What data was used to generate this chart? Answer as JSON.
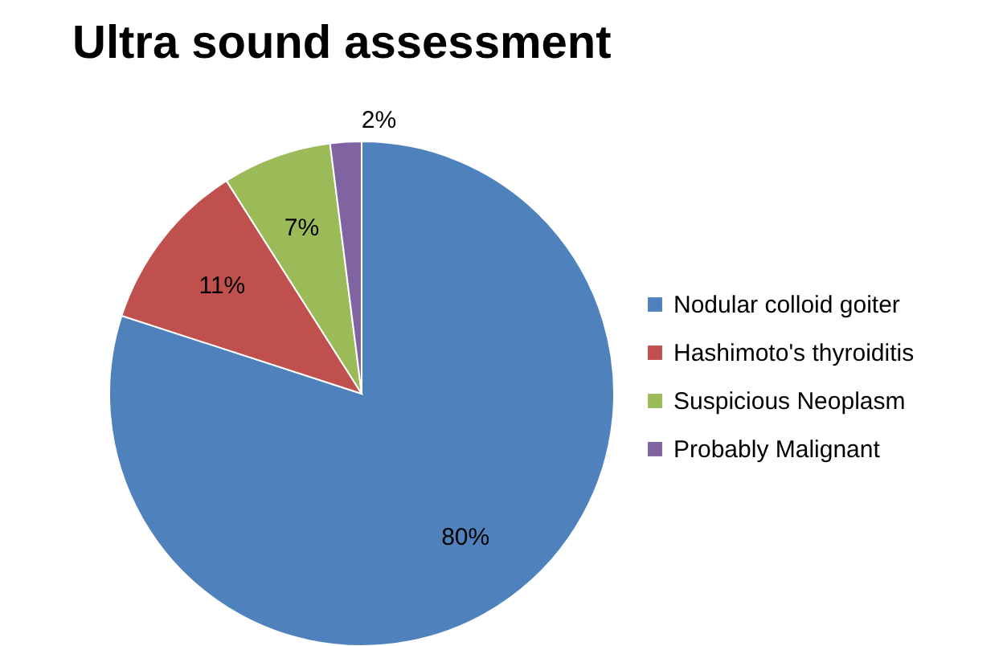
{
  "chart_data": {
    "type": "pie",
    "title": "Ultra sound assessment",
    "categories": [
      "Nodular colloid goiter",
      "Hashimoto's thyroiditis",
      "Suspicious Neoplasm",
      "Probably Malignant"
    ],
    "values": [
      80,
      11,
      7,
      2
    ],
    "colors": [
      "#4f81bd",
      "#c0504d",
      "#9bbb59",
      "#8064a2"
    ],
    "value_labels": [
      "80%",
      "11%",
      "7%",
      "2%"
    ],
    "legend": "right"
  }
}
